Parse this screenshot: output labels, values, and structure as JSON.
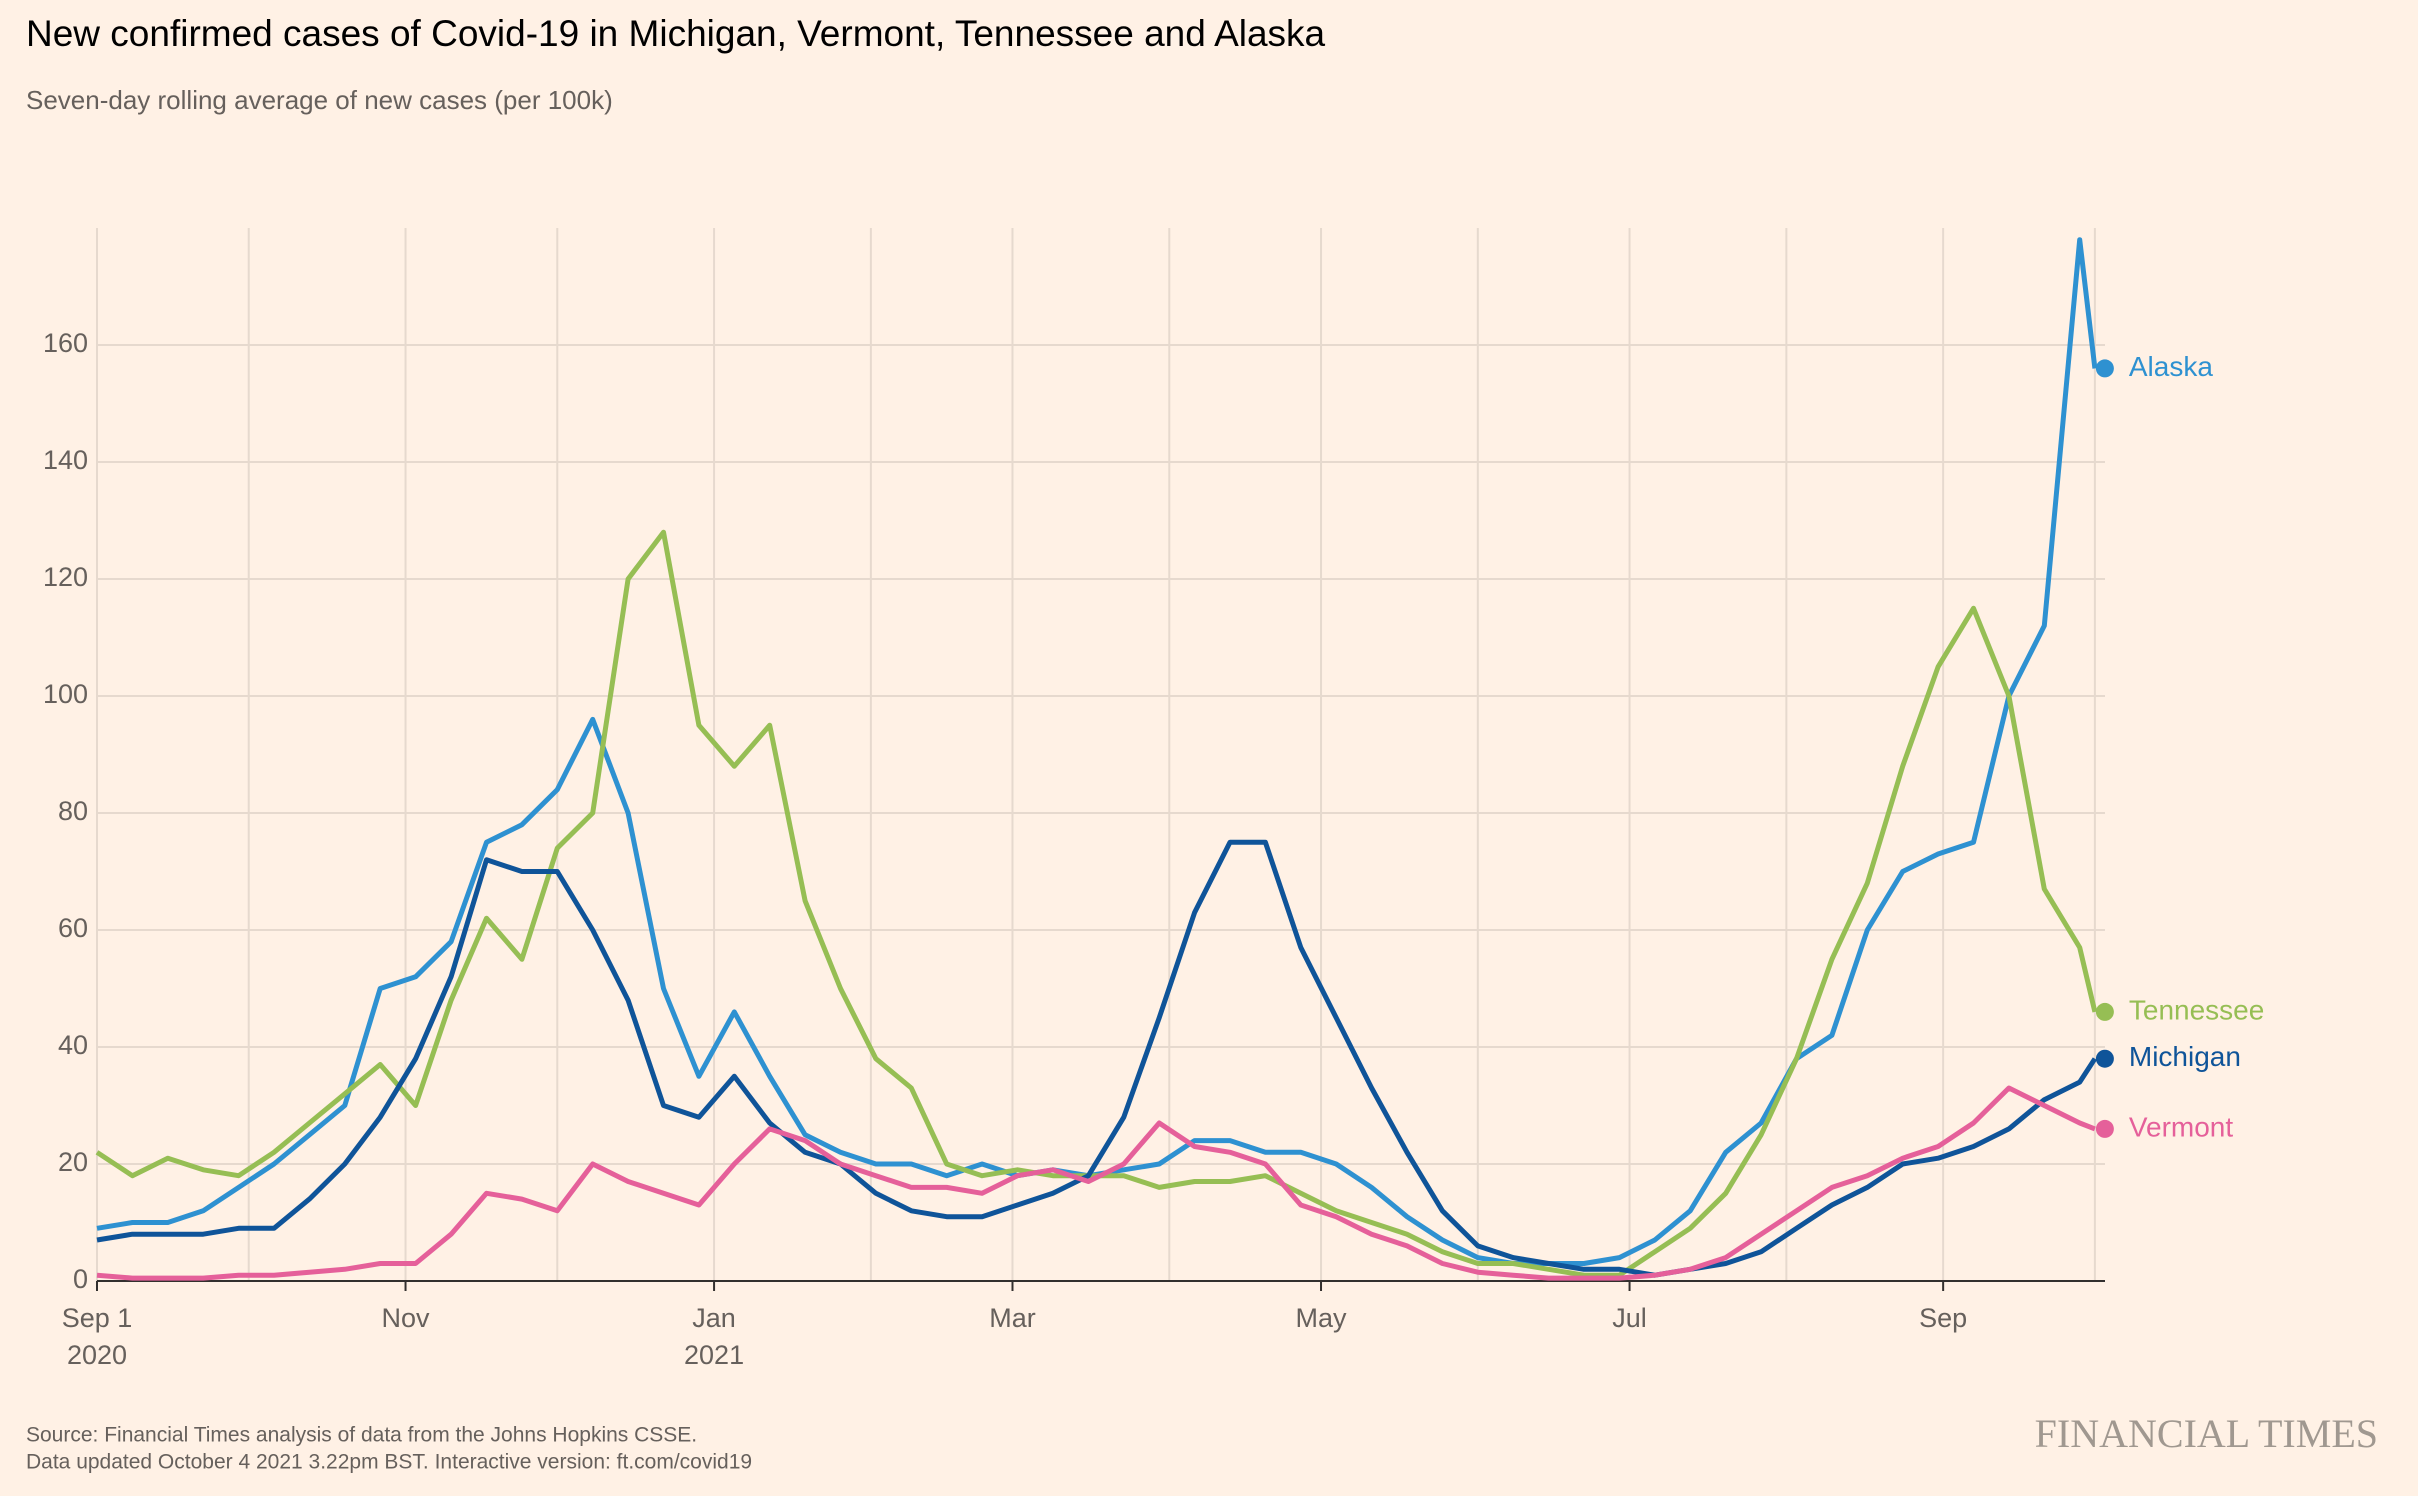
{
  "chart_data": {
    "type": "line",
    "title": "New confirmed cases of Covid-19 in Michigan, Vermont, Tennessee and Alaska",
    "subtitle": "Seven-day rolling average of new cases (per 100k)",
    "source": "Source: Financial Times analysis of data from the Johns Hopkins CSSE.",
    "note": "Data updated October 4 2021 3.22pm BST. Interactive version: ft.com/covid19",
    "brand": "FINANCIAL TIMES",
    "x": [
      "2020-09-01",
      "2020-09-08",
      "2020-09-15",
      "2020-09-22",
      "2020-09-29",
      "2020-10-06",
      "2020-10-13",
      "2020-10-20",
      "2020-10-27",
      "2020-11-03",
      "2020-11-10",
      "2020-11-17",
      "2020-11-24",
      "2020-12-01",
      "2020-12-08",
      "2020-12-15",
      "2020-12-22",
      "2020-12-29",
      "2021-01-05",
      "2021-01-12",
      "2021-01-19",
      "2021-01-26",
      "2021-02-02",
      "2021-02-09",
      "2021-02-16",
      "2021-02-23",
      "2021-03-02",
      "2021-03-09",
      "2021-03-16",
      "2021-03-23",
      "2021-03-30",
      "2021-04-06",
      "2021-04-13",
      "2021-04-20",
      "2021-04-27",
      "2021-05-04",
      "2021-05-11",
      "2021-05-18",
      "2021-05-25",
      "2021-06-01",
      "2021-06-08",
      "2021-06-15",
      "2021-06-22",
      "2021-06-29",
      "2021-07-06",
      "2021-07-13",
      "2021-07-20",
      "2021-07-27",
      "2021-08-03",
      "2021-08-10",
      "2021-08-17",
      "2021-08-24",
      "2021-08-31",
      "2021-09-07",
      "2021-09-14",
      "2021-09-21",
      "2021-09-28",
      "2021-10-01"
    ],
    "xlim": [
      "2020-09-01",
      "2021-10-03"
    ],
    "xticks": [
      {
        "value": "2020-09-01",
        "label": [
          "Sep 1",
          "2020"
        ]
      },
      {
        "value": "2020-11-01",
        "label": [
          "Nov"
        ]
      },
      {
        "value": "2021-01-01",
        "label": [
          "Jan",
          "2021"
        ]
      },
      {
        "value": "2021-03-01",
        "label": [
          "Mar"
        ]
      },
      {
        "value": "2021-05-01",
        "label": [
          "May"
        ]
      },
      {
        "value": "2021-07-01",
        "label": [
          "Jul"
        ]
      },
      {
        "value": "2021-09-01",
        "label": [
          "Sep"
        ]
      }
    ],
    "xgrid": [
      "2020-09-01",
      "2020-10-01",
      "2020-11-01",
      "2020-12-01",
      "2021-01-01",
      "2021-02-01",
      "2021-03-01",
      "2021-04-01",
      "2021-05-01",
      "2021-06-01",
      "2021-07-01",
      "2021-08-01",
      "2021-09-01",
      "2021-10-01"
    ],
    "ylim": [
      0,
      180
    ],
    "yticks": [
      0,
      20,
      40,
      60,
      80,
      100,
      120,
      140,
      160
    ],
    "grid": true,
    "series": [
      {
        "name": "Alaska",
        "color": "#2e91d1",
        "values": [
          9,
          10,
          10,
          12,
          16,
          20,
          25,
          30,
          50,
          52,
          58,
          75,
          78,
          84,
          96,
          80,
          50,
          35,
          46,
          35,
          25,
          22,
          20,
          20,
          18,
          20,
          18,
          19,
          18,
          19,
          20,
          24,
          24,
          22,
          22,
          20,
          16,
          11,
          7,
          4,
          3,
          3,
          3,
          4,
          7,
          12,
          22,
          27,
          38,
          42,
          60,
          70,
          73,
          75,
          100,
          112,
          178,
          156
        ]
      },
      {
        "name": "Tennessee",
        "color": "#96be54",
        "values": [
          22,
          18,
          21,
          19,
          18,
          22,
          27,
          32,
          37,
          30,
          48,
          62,
          55,
          74,
          80,
          120,
          128,
          95,
          88,
          95,
          65,
          50,
          38,
          33,
          20,
          18,
          19,
          18,
          18,
          18,
          16,
          17,
          17,
          18,
          15,
          12,
          10,
          8,
          5,
          3,
          3,
          2,
          1,
          1,
          5,
          9,
          15,
          25,
          38,
          55,
          68,
          88,
          105,
          115,
          100,
          67,
          57,
          46
        ]
      },
      {
        "name": "Michigan",
        "color": "#0f5499",
        "values": [
          7,
          8,
          8,
          8,
          9,
          9,
          14,
          20,
          28,
          38,
          52,
          72,
          70,
          70,
          60,
          48,
          30,
          28,
          35,
          27,
          22,
          20,
          15,
          12,
          11,
          11,
          13,
          15,
          18,
          28,
          45,
          63,
          75,
          75,
          57,
          45,
          33,
          22,
          12,
          6,
          4,
          3,
          2,
          2,
          1,
          2,
          3,
          5,
          9,
          13,
          16,
          20,
          21,
          23,
          26,
          31,
          34,
          38
        ]
      },
      {
        "name": "Vermont",
        "color": "#e5609a",
        "values": [
          1,
          0.5,
          0.5,
          0.5,
          1,
          1,
          1.5,
          2,
          3,
          3,
          8,
          15,
          14,
          12,
          20,
          17,
          15,
          13,
          20,
          26,
          24,
          20,
          18,
          16,
          16,
          15,
          18,
          19,
          17,
          20,
          27,
          23,
          22,
          20,
          13,
          11,
          8,
          6,
          3,
          1.5,
          1,
          0.5,
          0.5,
          0.5,
          1,
          2,
          4,
          8,
          12,
          16,
          18,
          21,
          23,
          27,
          33,
          30,
          27,
          26
        ]
      }
    ]
  }
}
